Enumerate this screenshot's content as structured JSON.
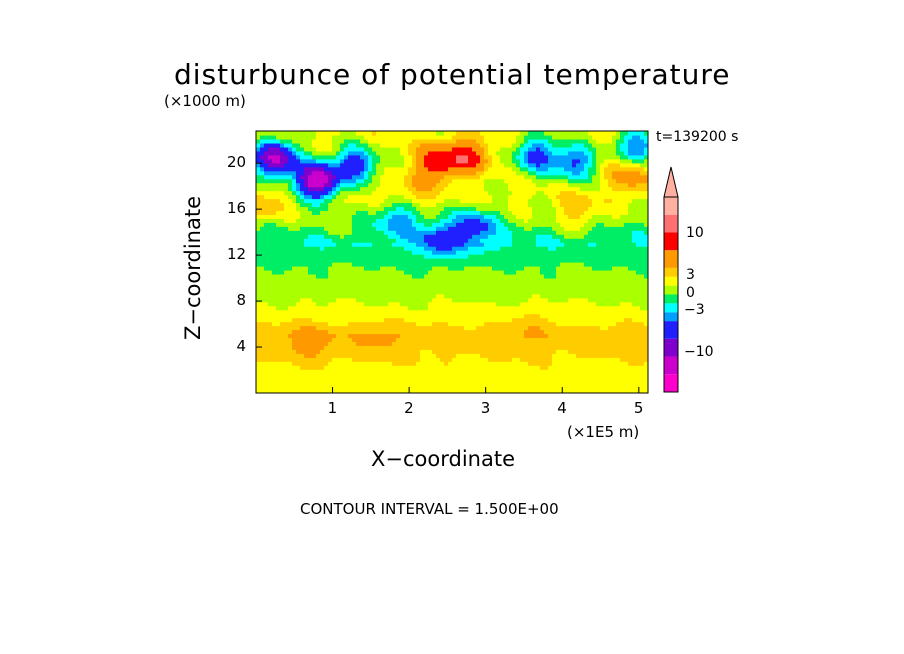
{
  "chart_data": {
    "type": "heatmap",
    "title": "disturbunce of potential temperature",
    "y_unit_label": "(×1000 m)",
    "x_unit_label": "(×1E5 m)",
    "xlabel": "X−coordinate",
    "ylabel": "Z−coordinate",
    "time_label": "t=139200 s",
    "footer": "CONTOUR INTERVAL = 1.500E+00",
    "xlim": [
      0,
      5.12
    ],
    "ylim": [
      0,
      22.8
    ],
    "x_ticks": [
      1,
      2,
      3,
      4,
      5
    ],
    "x_tick_labels": [
      "1",
      "2",
      "3",
      "4",
      "5"
    ],
    "y_ticks": [
      4,
      8,
      12,
      16,
      20
    ],
    "y_tick_labels": [
      "4",
      "8",
      "12",
      "16",
      "20"
    ],
    "colorbar": {
      "levels": [
        -16.5,
        -13.5,
        -10.5,
        -7.5,
        -4.5,
        -3,
        -1.5,
        0,
        1.5,
        3,
        4.5,
        7.5,
        10.5,
        13.5,
        16.5
      ],
      "colors": [
        "#ff00cc",
        "#cc00cc",
        "#7f00cc",
        "#2020ff",
        "#00a0ff",
        "#00ffff",
        "#00ee66",
        "#aaff00",
        "#ffff00",
        "#ffcc00",
        "#ff9900",
        "#ff0000",
        "#ff7070",
        "#ffb0a0"
      ],
      "labeled_levels": [
        -10,
        -3,
        0,
        3,
        10
      ],
      "labels": [
        "−10",
        "−3",
        "0",
        "3",
        "10"
      ],
      "extend": "max"
    },
    "approx_profile": [
      {
        "z": 1,
        "value": 2.0
      },
      {
        "z": 3,
        "value": 3.0
      },
      {
        "z": 5,
        "value": 4.0
      },
      {
        "z": 7,
        "value": 2.0
      },
      {
        "z": 9,
        "value": 0.8
      },
      {
        "z": 11,
        "value": 0.0
      },
      {
        "z": 13,
        "value": -1.5
      },
      {
        "z": 15,
        "value": 0.5
      },
      {
        "z": 17,
        "value": 2.0
      },
      {
        "z": 19,
        "value": 1.5
      },
      {
        "z": 21,
        "value": 2.0
      }
    ],
    "features": [
      {
        "x": 0.25,
        "z": 20.5,
        "value": -11
      },
      {
        "x": 0.8,
        "z": 18.5,
        "value": -13
      },
      {
        "x": 1.3,
        "z": 20.0,
        "value": -6
      },
      {
        "x": 2.35,
        "z": 20.0,
        "value": 9
      },
      {
        "x": 2.75,
        "z": 20.6,
        "value": 9
      },
      {
        "x": 2.05,
        "z": 17.6,
        "value": 4
      },
      {
        "x": 3.65,
        "z": 20.8,
        "value": -5
      },
      {
        "x": 4.15,
        "z": 20.2,
        "value": -5
      },
      {
        "x": 5.0,
        "z": 21.5,
        "value": -5
      },
      {
        "x": 2.4,
        "z": 13.5,
        "value": -6
      },
      {
        "x": 2.85,
        "z": 14.5,
        "value": -6
      },
      {
        "x": 1.85,
        "z": 15.3,
        "value": -4
      },
      {
        "x": 0.7,
        "z": 4.4,
        "value": 6
      },
      {
        "x": 1.6,
        "z": 4.6,
        "value": 5
      },
      {
        "x": 3.6,
        "z": 6.0,
        "value": 4
      },
      {
        "x": 4.5,
        "z": 5.0,
        "value": 4
      },
      {
        "x": 4.2,
        "z": 15.8,
        "value": 4
      },
      {
        "x": 0.1,
        "z": 16.2,
        "value": 4
      },
      {
        "x": 4.9,
        "z": 19.0,
        "value": 6
      }
    ]
  }
}
